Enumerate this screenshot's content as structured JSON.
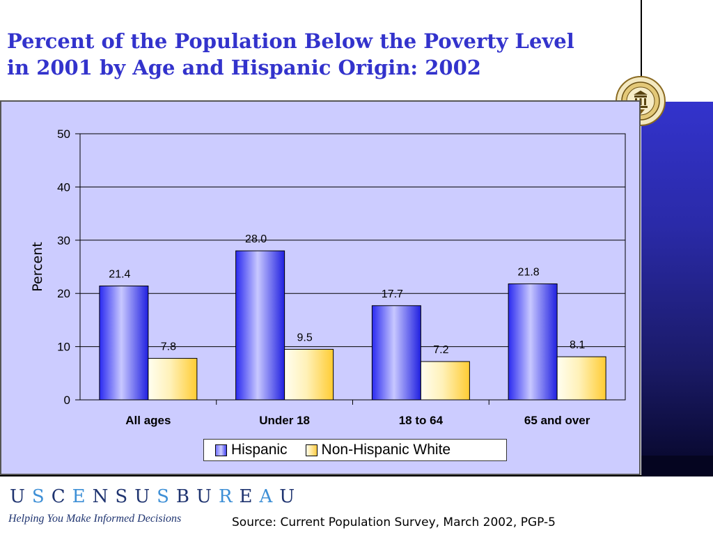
{
  "slide": {
    "title_line1": "Percent of the Population Below the Poverty Level",
    "title_line2": "in 2001 by Age and Hispanic Origin: 2002",
    "brand_letters": [
      "U",
      "S",
      "C",
      "E",
      "N",
      "S",
      "U",
      "S",
      "B",
      "U",
      "R",
      "E",
      "A",
      "U"
    ],
    "tagline": "Helping You Make Informed Decisions",
    "source": "Source:  Current Population Survey, March 2002, PGP-5",
    "colors": {
      "title": "#3333cc",
      "brand_dark": "#1f3470",
      "brand_accent": "#3d8fd6",
      "plot_background": "#ccccff",
      "side_band": "#3333cc"
    }
  },
  "chart_data": {
    "type": "bar",
    "title": "",
    "xlabel": "",
    "ylabel": "Percent",
    "categories": [
      "All ages",
      "Under 18",
      "18 to 64",
      "65 and over"
    ],
    "series": [
      {
        "name": "Hispanic",
        "values": [
          21.4,
          28.0,
          17.7,
          21.8
        ],
        "value_labels": [
          "21.4",
          "28.0",
          "17.7",
          "21.8"
        ],
        "color": "#6666ff"
      },
      {
        "name": "Non-Hispanic White",
        "values": [
          7.8,
          9.5,
          7.2,
          8.1
        ],
        "value_labels": [
          "7.8",
          "9.5",
          "7.2",
          "8.1"
        ],
        "color": "#ffcc44"
      }
    ],
    "ylim": [
      0,
      50
    ],
    "yticks": [
      0,
      10,
      20,
      30,
      40,
      50
    ],
    "grid": true,
    "legend_position": "bottom"
  }
}
